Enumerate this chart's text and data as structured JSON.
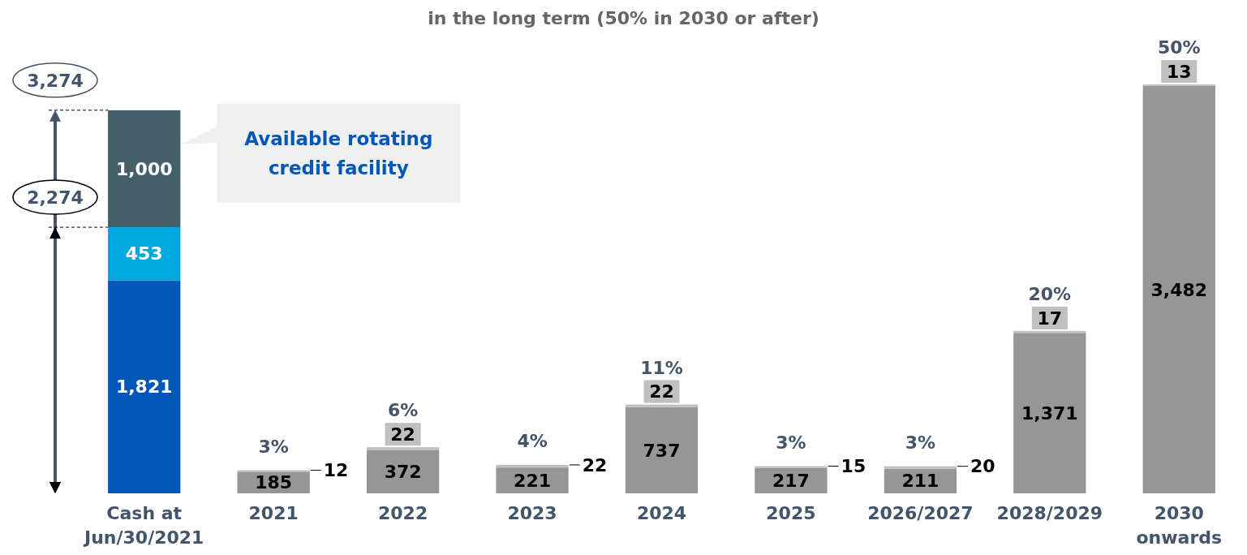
{
  "chart_data": {
    "type": "bar",
    "stacked": true,
    "title": "in the long term (50% in 2030 or after)",
    "categories": [
      "Cash at\nJun/30/2021",
      "2021",
      "2022",
      "2023",
      "2024",
      "2025",
      "2026/2027",
      "2028/2029",
      "2030\nonwards"
    ],
    "series": [
      {
        "color": "#0057b8",
        "values": [
          1821,
          null,
          null,
          null,
          null,
          null,
          null,
          null,
          null
        ],
        "value_labels": [
          "1,821",
          null,
          null,
          null,
          null,
          null,
          null,
          null,
          null
        ]
      },
      {
        "color": "#00a8e0",
        "values": [
          453,
          null,
          null,
          null,
          null,
          null,
          null,
          null,
          null
        ],
        "value_labels": [
          "453",
          null,
          null,
          null,
          null,
          null,
          null,
          null,
          null
        ]
      },
      {
        "color": "#455f6b",
        "values": [
          1000,
          null,
          null,
          null,
          null,
          null,
          null,
          null,
          null
        ],
        "value_labels": [
          "1,000",
          null,
          null,
          null,
          null,
          null,
          null,
          null,
          null
        ]
      },
      {
        "color": "#969696",
        "values": [
          null,
          185,
          372,
          221,
          737,
          217,
          211,
          1371,
          3482
        ],
        "value_labels": [
          null,
          "185",
          "372",
          "221",
          "737",
          "217",
          "211",
          "1,371",
          "3,482"
        ]
      },
      {
        "color": "#c0c0c0",
        "values": [
          null,
          12,
          22,
          22,
          22,
          15,
          20,
          17,
          13
        ],
        "value_labels": [
          null,
          "12",
          "22",
          "22",
          "22",
          "15",
          "20",
          "17",
          "13"
        ]
      }
    ],
    "tick_labels": "x",
    "annotations": [
      "3,274",
      "2,274",
      "Available rotating credit facility",
      {
        "text": "3%",
        "x": "2021",
        "y": 197
      },
      {
        "text": "6%",
        "x": "2022",
        "y": 394
      },
      {
        "text": "4%",
        "x": "2023",
        "y": 243
      },
      {
        "text": "11%",
        "x": "2024",
        "y": 759
      },
      {
        "text": "3%",
        "x": "2025",
        "y": 232
      },
      {
        "text": "3%",
        "x": "2026/2027",
        "y": 231
      },
      {
        "text": "20%",
        "x": "2028/2029",
        "y": 1388
      },
      {
        "text": "50%",
        "x": "2030\nonwards",
        "y": 3495
      }
    ]
  }
}
